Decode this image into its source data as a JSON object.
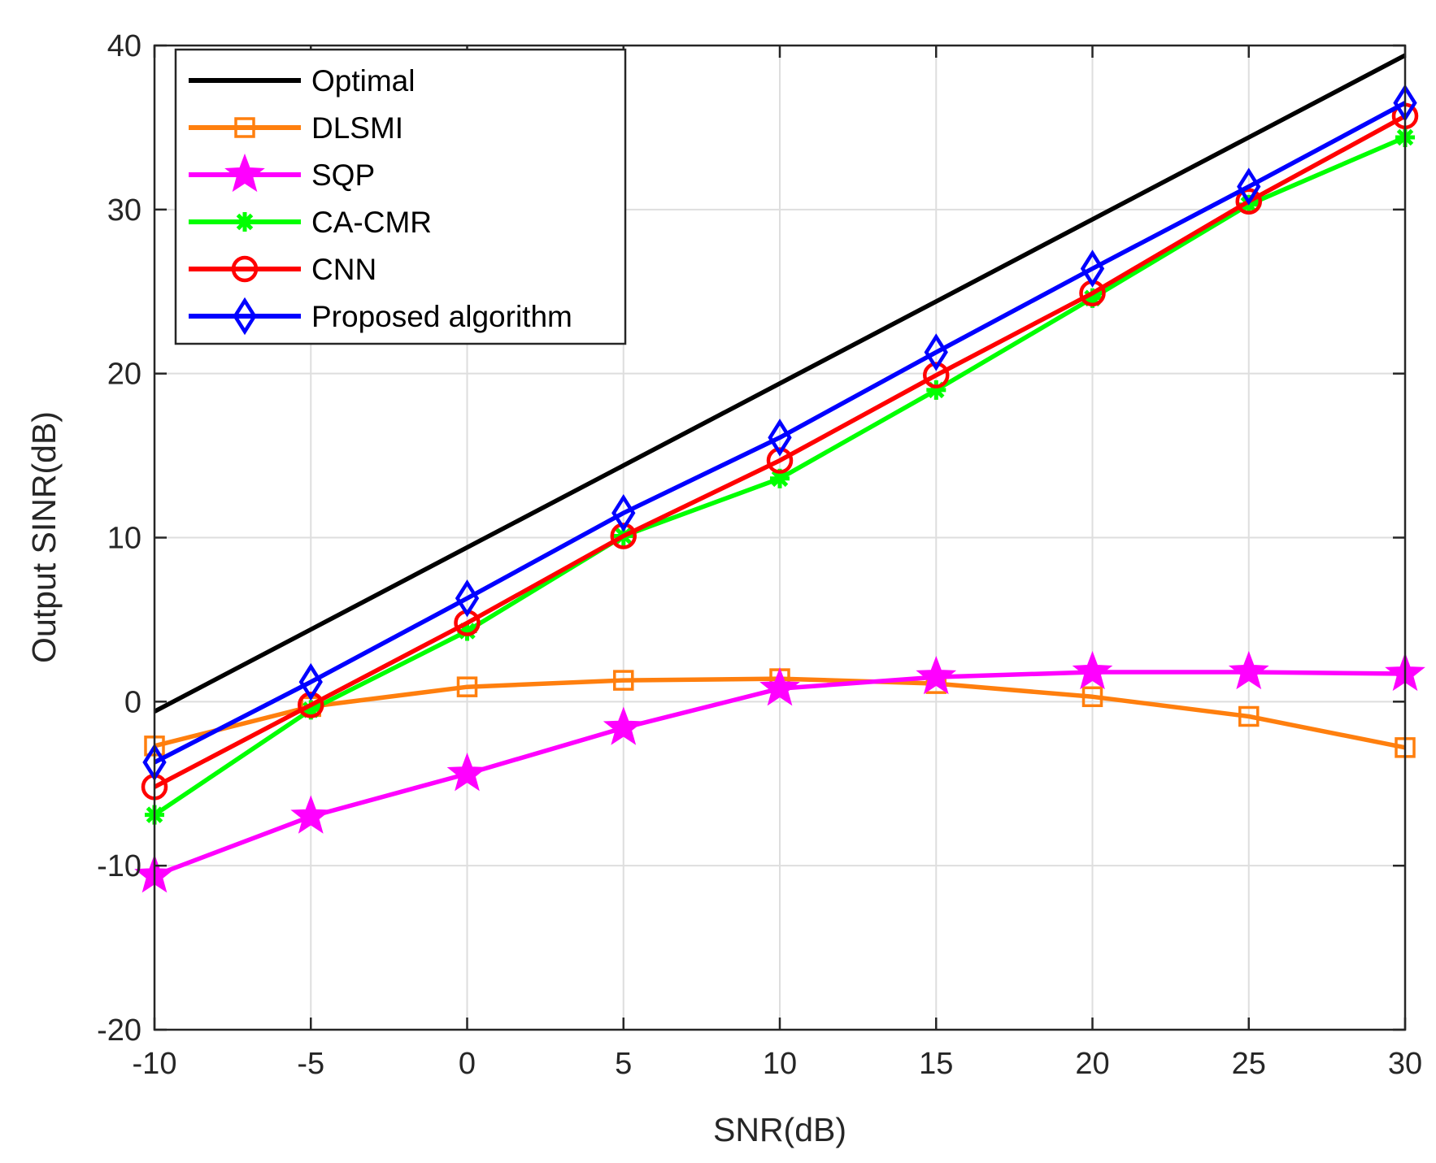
{
  "chart_data": {
    "type": "line",
    "title": "",
    "xlabel": "SNR(dB)",
    "ylabel": "Output SINR(dB)",
    "xlim": [
      -10,
      30
    ],
    "ylim": [
      -20,
      40
    ],
    "xticks": [
      "-10",
      "-5",
      "0",
      "5",
      "10",
      "15",
      "20",
      "25",
      "30"
    ],
    "yticks": [
      "-20",
      "-10",
      "0",
      "10",
      "20",
      "30",
      "40"
    ],
    "xtick_values": [
      -10,
      -5,
      0,
      5,
      10,
      15,
      20,
      25,
      30
    ],
    "ytick_values": [
      -20,
      -10,
      0,
      10,
      20,
      30,
      40
    ],
    "grid": true,
    "legend_position": "top-left",
    "x": [
      -10,
      -5,
      0,
      5,
      10,
      15,
      20,
      25,
      30
    ],
    "series": [
      {
        "name": "Optimal",
        "color": "#000000",
        "marker": "none",
        "values": [
          -0.6,
          4.4,
          9.4,
          14.4,
          19.4,
          24.4,
          29.4,
          34.4,
          39.4
        ]
      },
      {
        "name": "DLSMI",
        "color": "#FF7F0E",
        "marker": "square",
        "values": [
          -2.7,
          -0.3,
          0.9,
          1.3,
          1.4,
          1.1,
          0.3,
          -0.9,
          -2.8
        ]
      },
      {
        "name": "SQP",
        "color": "#FF00FF",
        "marker": "star",
        "values": [
          -10.6,
          -7.0,
          -4.4,
          -1.6,
          0.8,
          1.5,
          1.8,
          1.8,
          1.7
        ]
      },
      {
        "name": "CA-CMR",
        "color": "#00FF00",
        "marker": "asterisk",
        "values": [
          -6.9,
          -0.5,
          4.3,
          10.1,
          13.6,
          19.0,
          24.6,
          30.3,
          34.4
        ]
      },
      {
        "name": "CNN",
        "color": "#FF0000",
        "marker": "circle",
        "values": [
          -5.2,
          -0.2,
          4.8,
          10.1,
          14.7,
          19.9,
          24.9,
          30.5,
          35.7
        ]
      },
      {
        "name": "Proposed algorithm",
        "color": "#0000FF",
        "marker": "diamond",
        "values": [
          -3.7,
          1.2,
          6.3,
          11.5,
          16.1,
          21.3,
          26.4,
          31.4,
          36.5
        ]
      }
    ]
  }
}
